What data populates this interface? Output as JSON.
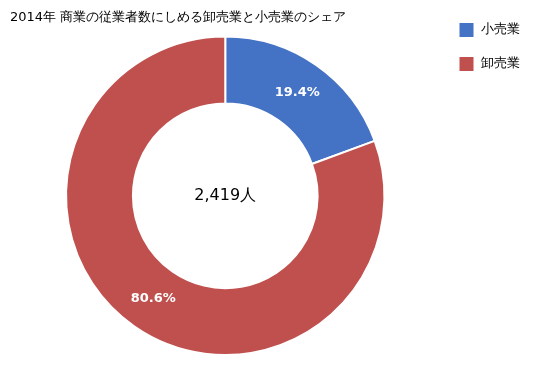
{
  "chart_data": {
    "type": "doughnut",
    "title": "2014年 商業の従業者数にしめる卸売業と小売業のシェア",
    "categories": [
      "小売業",
      "卸売業"
    ],
    "values": [
      19.4,
      80.6
    ],
    "value_labels": [
      "19.4%",
      "80.6%"
    ],
    "colors": [
      "#4472C4",
      "#C0504D"
    ],
    "data_labels": true,
    "annotations": [
      "2,419人"
    ],
    "legend": "right"
  }
}
